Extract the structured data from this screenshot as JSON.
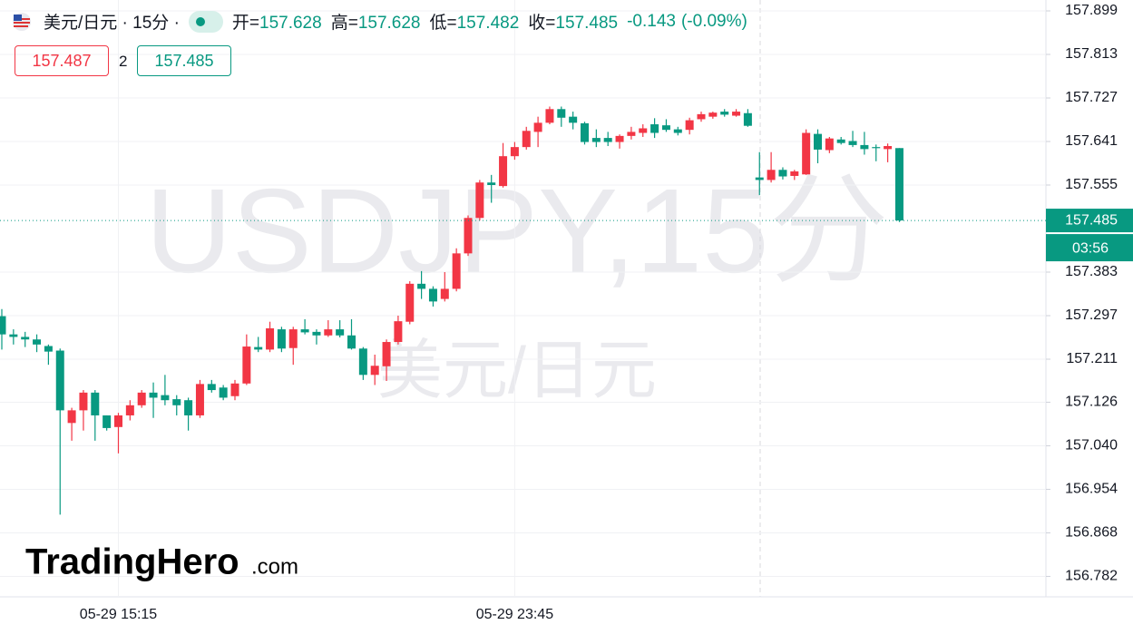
{
  "header": {
    "title": "美元/日元 · 15分 ·",
    "ohlc": [
      {
        "label": "开=",
        "value": 157.628
      },
      {
        "label": "高=",
        "value": 157.628
      },
      {
        "label": "低=",
        "value": 157.482
      },
      {
        "label": "收=",
        "value": 157.485
      }
    ],
    "change": -0.143,
    "change_percent": "(-0.09%)",
    "bid": 157.487,
    "spread": 2,
    "ask": 157.485
  },
  "watermark": {
    "symbol": "USDJPY,15分",
    "name": "美元/日元"
  },
  "logo": {
    "brand": "TradingHero",
    "suffix": ".com"
  },
  "price_label": {
    "price": 157.485,
    "countdown": "03:56"
  },
  "chart_data": {
    "type": "candlestick",
    "categories": [
      null,
      null,
      null,
      null,
      null,
      null,
      null,
      null,
      null,
      null,
      "05-29 15:15",
      null,
      null,
      null,
      null,
      null,
      null,
      null,
      null,
      null,
      null,
      null,
      null,
      null,
      null,
      null,
      null,
      null,
      null,
      null,
      null,
      null,
      null,
      null,
      null,
      null,
      null,
      null,
      null,
      null,
      null,
      null,
      null,
      null,
      "05-29 23:45",
      null,
      null,
      null,
      null,
      null,
      null,
      null,
      null,
      null,
      null,
      null,
      null,
      null,
      null,
      null,
      null,
      null,
      null,
      null,
      null,
      null,
      null,
      null,
      null,
      null,
      null,
      null,
      null,
      null,
      null,
      null,
      null,
      null
    ],
    "open": [
      157.296,
      157.26,
      157.255,
      157.25,
      157.237,
      157.228,
      157.085,
      157.11,
      157.145,
      157.1,
      157.077,
      157.1,
      157.12,
      157.145,
      157.14,
      157.132,
      157.13,
      157.1,
      157.162,
      157.155,
      157.138,
      157.163,
      157.235,
      157.23,
      157.27,
      157.233,
      157.27,
      157.265,
      157.258,
      157.27,
      157.258,
      157.232,
      157.18,
      157.197,
      157.245,
      157.285,
      157.36,
      157.35,
      157.33,
      157.35,
      157.42,
      157.49,
      157.56,
      157.553,
      157.612,
      157.63,
      157.66,
      157.678,
      157.705,
      157.69,
      157.677,
      157.648,
      157.648,
      157.64,
      157.652,
      157.658,
      157.675,
      157.673,
      157.665,
      157.664,
      157.685,
      157.69,
      157.7,
      157.692,
      157.697,
      157.57,
      157.565,
      157.585,
      157.573,
      157.576,
      157.656,
      157.624,
      157.645,
      157.642,
      157.634,
      157.63,
      157.626,
      157.628
    ],
    "high": [
      157.31,
      157.27,
      157.265,
      157.26,
      157.24,
      157.232,
      157.115,
      157.15,
      157.15,
      157.1,
      157.105,
      157.13,
      157.15,
      157.165,
      157.18,
      157.14,
      157.135,
      157.17,
      157.17,
      157.16,
      157.17,
      157.26,
      157.255,
      157.285,
      157.275,
      157.275,
      157.29,
      157.27,
      157.288,
      157.288,
      157.29,
      157.235,
      157.22,
      157.25,
      157.297,
      157.365,
      157.385,
      157.355,
      157.383,
      157.43,
      157.495,
      157.565,
      157.575,
      157.638,
      157.64,
      157.67,
      157.69,
      157.71,
      157.71,
      157.7,
      157.68,
      157.665,
      157.66,
      157.655,
      157.67,
      157.675,
      157.687,
      157.685,
      157.67,
      157.688,
      157.7,
      157.7,
      157.705,
      157.705,
      157.705,
      157.62,
      157.62,
      157.59,
      157.585,
      157.665,
      157.665,
      157.65,
      157.65,
      157.662,
      157.66,
      157.635,
      157.637,
      157.628
    ],
    "low": [
      157.23,
      157.24,
      157.235,
      157.225,
      157.2,
      156.904,
      157.05,
      157.07,
      157.05,
      157.07,
      157.025,
      157.09,
      157.115,
      157.095,
      157.12,
      157.1,
      157.07,
      157.095,
      157.145,
      157.13,
      157.13,
      157.16,
      157.225,
      157.225,
      157.225,
      157.2,
      157.26,
      157.24,
      157.255,
      157.254,
      157.23,
      157.17,
      157.16,
      157.168,
      157.24,
      157.28,
      157.33,
      157.315,
      157.325,
      157.345,
      157.415,
      157.485,
      157.52,
      157.55,
      157.605,
      157.625,
      157.63,
      157.675,
      157.67,
      157.665,
      157.635,
      157.63,
      157.632,
      157.627,
      157.645,
      157.65,
      157.648,
      157.66,
      157.653,
      157.655,
      157.68,
      157.686,
      157.69,
      157.69,
      157.67,
      157.535,
      157.56,
      157.566,
      157.565,
      157.575,
      157.598,
      157.618,
      157.635,
      157.63,
      157.615,
      157.602,
      157.6,
      157.482
    ],
    "close": [
      157.26,
      157.255,
      157.25,
      157.24,
      157.226,
      157.11,
      157.11,
      157.145,
      157.1,
      157.075,
      157.1,
      157.12,
      157.145,
      157.135,
      157.13,
      157.12,
      157.1,
      157.162,
      157.15,
      157.135,
      157.163,
      157.236,
      157.23,
      157.272,
      157.232,
      157.27,
      157.264,
      157.258,
      157.27,
      157.258,
      157.232,
      157.18,
      157.198,
      157.245,
      157.286,
      157.36,
      157.35,
      157.325,
      157.35,
      157.42,
      157.49,
      157.56,
      157.555,
      157.612,
      157.63,
      157.662,
      157.678,
      157.705,
      157.688,
      157.678,
      157.64,
      157.64,
      157.64,
      157.652,
      157.66,
      157.667,
      157.658,
      157.664,
      157.658,
      157.683,
      157.695,
      157.698,
      157.694,
      157.7,
      157.672,
      157.565,
      157.585,
      157.572,
      157.582,
      157.658,
      157.625,
      157.647,
      157.638,
      157.634,
      157.626,
      157.628,
      157.632,
      157.485
    ],
    "up_color": "#f23645",
    "down_color": "#089981",
    "ylim": [
      156.7416,
      157.9205
    ],
    "yticks": [
      157.899,
      157.813,
      157.727,
      157.641,
      157.555,
      157.383,
      157.297,
      157.211,
      157.126,
      {
        "value": 157.04,
        "label": "157.040"
      },
      156.954,
      156.868,
      156.782
    ],
    "grid": true
  }
}
